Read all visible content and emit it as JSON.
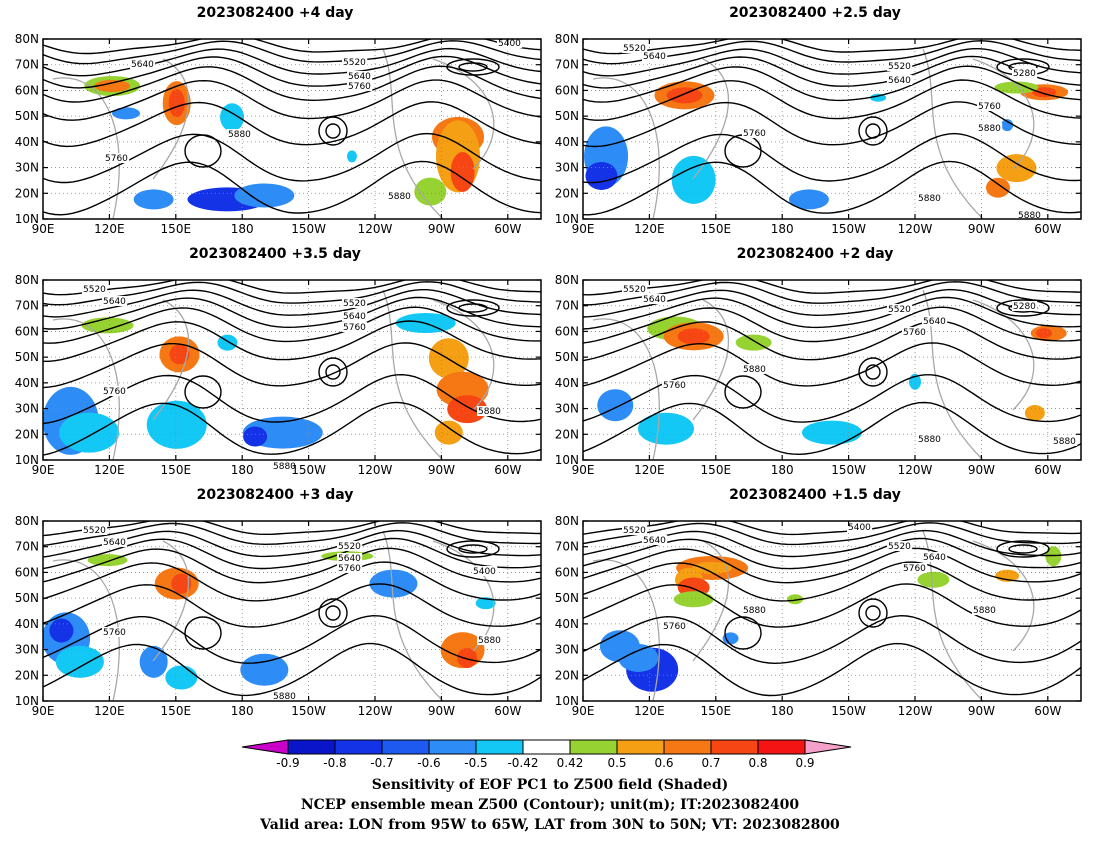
{
  "panels": [
    {
      "title": "2023082400 +4 day",
      "labels": [
        "5640",
        "5520",
        "5640",
        "5760",
        "5400",
        "5760",
        "5880",
        "5880"
      ]
    },
    {
      "title": "2023082400 +2.5 day",
      "labels": [
        "5520",
        "5640",
        "5520",
        "5640",
        "5280",
        "5760",
        "5760",
        "5880",
        "5880",
        "5880"
      ]
    },
    {
      "title": "2023082400 +3.5 day",
      "labels": [
        "5520",
        "5640",
        "5520",
        "5640",
        "5760",
        "5760",
        "5880",
        "5880"
      ]
    },
    {
      "title": "2023082400 +2 day",
      "labels": [
        "5520",
        "5640",
        "5520",
        "5640",
        "5280",
        "5760",
        "5760",
        "5880",
        "5880",
        "5880"
      ]
    },
    {
      "title": "2023082400 +3 day",
      "labels": [
        "5520",
        "5640",
        "5520",
        "5640",
        "5760",
        "5400",
        "5760",
        "5880",
        "5880"
      ]
    },
    {
      "title": "2023082400 +1.5 day",
      "labels": [
        "5520",
        "5640",
        "5400",
        "5520",
        "5640",
        "5760",
        "5880",
        "5760",
        "5880"
      ]
    }
  ],
  "axes": {
    "lat_labels": [
      "80N",
      "70N",
      "60N",
      "50N",
      "40N",
      "30N",
      "20N",
      "10N"
    ],
    "lon_labels": [
      "90E",
      "120E",
      "150E",
      "180",
      "150W",
      "120W",
      "90W",
      "60W"
    ]
  },
  "colorbar": {
    "ticks": [
      "-0.9",
      "-0.8",
      "-0.7",
      "-0.6",
      "-0.5",
      "-0.42",
      "0.42",
      "0.5",
      "0.6",
      "0.7",
      "0.8",
      "0.9"
    ],
    "colors": [
      "#c800c8",
      "#0a14c8",
      "#1432e6",
      "#1e5af0",
      "#2d8cf5",
      "#14c8f5",
      "#ffffff",
      "#96d232",
      "#f5a014",
      "#f57814",
      "#f54614",
      "#f51414",
      "#f5a0c8"
    ]
  },
  "captions": [
    "Sensitivity of EOF PC1 to Z500 field (Shaded)",
    "NCEP ensemble mean Z500 (Contour); unit(m); IT:2023082400",
    "Valid area: LON from 95W to 65W, LAT from 30N to 50N; VT: 2023082800"
  ]
}
